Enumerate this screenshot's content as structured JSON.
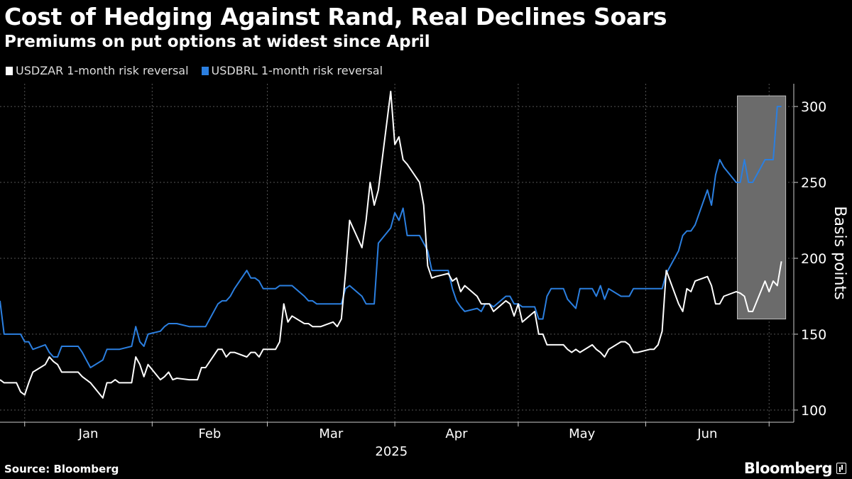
{
  "header": {
    "title": "Cost of Hedging Against Rand, Real Declines Soars",
    "subtitle": "Premiums on put options at widest since April"
  },
  "footer": {
    "source": "Source: Bloomberg",
    "logo_text": "Bloomberg"
  },
  "colors": {
    "background": "#000000",
    "zar": "#ffffff",
    "brl": "#2b7fe0",
    "highlight_box": "#6b6b6b",
    "grid": "#555555"
  },
  "chart_data": {
    "type": "line",
    "title": "Cost of Hedging Against Rand, Real Declines Soars",
    "subtitle": "Premiums on put options at widest since April",
    "xlabel": "2025",
    "ylabel": "Basis points",
    "y_axis_side": "right",
    "ylim": [
      92,
      315
    ],
    "yticks": [
      100,
      150,
      200,
      250,
      300
    ],
    "month_labels": [
      "Jan",
      "Feb",
      "Mar",
      "Apr",
      "May",
      "Jun"
    ],
    "year_label": "2025",
    "grid": true,
    "legend_position": "top-left",
    "highlight": {
      "x_start": "2025-06-25",
      "x_end": "2025-07-04",
      "y_range": [
        160,
        307
      ]
    },
    "series": [
      {
        "name": "USDZAR 1-month risk reversal",
        "color": "#ffffff",
        "points": [
          [
            "2024-12-26",
            120
          ],
          [
            "2024-12-27",
            118
          ],
          [
            "2024-12-30",
            118
          ],
          [
            "2024-12-31",
            112
          ],
          [
            "2025-01-01",
            110
          ],
          [
            "2025-01-02",
            118
          ],
          [
            "2025-01-03",
            125
          ],
          [
            "2025-01-06",
            130
          ],
          [
            "2025-01-07",
            135
          ],
          [
            "2025-01-08",
            132
          ],
          [
            "2025-01-09",
            130
          ],
          [
            "2025-01-10",
            125
          ],
          [
            "2025-01-13",
            125
          ],
          [
            "2025-01-14",
            125
          ],
          [
            "2025-01-15",
            122
          ],
          [
            "2025-01-16",
            120
          ],
          [
            "2025-01-17",
            118
          ],
          [
            "2025-01-20",
            108
          ],
          [
            "2025-01-21",
            118
          ],
          [
            "2025-01-22",
            118
          ],
          [
            "2025-01-23",
            120
          ],
          [
            "2025-01-24",
            118
          ],
          [
            "2025-01-27",
            118
          ],
          [
            "2025-01-28",
            135
          ],
          [
            "2025-01-29",
            130
          ],
          [
            "2025-01-30",
            122
          ],
          [
            "2025-01-31",
            130
          ],
          [
            "2025-02-03",
            120
          ],
          [
            "2025-02-04",
            122
          ],
          [
            "2025-02-05",
            125
          ],
          [
            "2025-02-06",
            120
          ],
          [
            "2025-02-07",
            121
          ],
          [
            "2025-02-10",
            120
          ],
          [
            "2025-02-11",
            120
          ],
          [
            "2025-02-12",
            120
          ],
          [
            "2025-02-13",
            128
          ],
          [
            "2025-02-14",
            128
          ],
          [
            "2025-02-17",
            140
          ],
          [
            "2025-02-18",
            140
          ],
          [
            "2025-02-19",
            135
          ],
          [
            "2025-02-20",
            138
          ],
          [
            "2025-02-21",
            138
          ],
          [
            "2025-02-24",
            135
          ],
          [
            "2025-02-25",
            138
          ],
          [
            "2025-02-26",
            138
          ],
          [
            "2025-02-27",
            135
          ],
          [
            "2025-02-28",
            140
          ],
          [
            "2025-03-03",
            140
          ],
          [
            "2025-03-04",
            145
          ],
          [
            "2025-03-05",
            170
          ],
          [
            "2025-03-06",
            158
          ],
          [
            "2025-03-07",
            162
          ],
          [
            "2025-03-10",
            157
          ],
          [
            "2025-03-11",
            157
          ],
          [
            "2025-03-12",
            155
          ],
          [
            "2025-03-13",
            155
          ],
          [
            "2025-03-14",
            155
          ],
          [
            "2025-03-17",
            158
          ],
          [
            "2025-03-18",
            155
          ],
          [
            "2025-03-19",
            160
          ],
          [
            "2025-03-20",
            190
          ],
          [
            "2025-03-21",
            225
          ],
          [
            "2025-03-24",
            207
          ],
          [
            "2025-03-25",
            225
          ],
          [
            "2025-03-26",
            250
          ],
          [
            "2025-03-27",
            235
          ],
          [
            "2025-03-28",
            245
          ],
          [
            "2025-03-31",
            310
          ],
          [
            "2025-04-01",
            275
          ],
          [
            "2025-04-02",
            280
          ],
          [
            "2025-04-03",
            265
          ],
          [
            "2025-04-04",
            262
          ],
          [
            "2025-04-07",
            250
          ],
          [
            "2025-04-08",
            235
          ],
          [
            "2025-04-09",
            195
          ],
          [
            "2025-04-10",
            187
          ],
          [
            "2025-04-11",
            188
          ],
          [
            "2025-04-14",
            190
          ],
          [
            "2025-04-15",
            185
          ],
          [
            "2025-04-16",
            187
          ],
          [
            "2025-04-17",
            178
          ],
          [
            "2025-04-18",
            182
          ],
          [
            "2025-04-21",
            175
          ],
          [
            "2025-04-22",
            170
          ],
          [
            "2025-04-23",
            170
          ],
          [
            "2025-04-24",
            170
          ],
          [
            "2025-04-25",
            165
          ],
          [
            "2025-04-28",
            172
          ],
          [
            "2025-04-29",
            170
          ],
          [
            "2025-04-30",
            162
          ],
          [
            "2025-05-01",
            170
          ],
          [
            "2025-05-02",
            158
          ],
          [
            "2025-05-05",
            165
          ],
          [
            "2025-05-06",
            150
          ],
          [
            "2025-05-07",
            150
          ],
          [
            "2025-05-08",
            143
          ],
          [
            "2025-05-09",
            143
          ],
          [
            "2025-05-12",
            143
          ],
          [
            "2025-05-13",
            140
          ],
          [
            "2025-05-14",
            138
          ],
          [
            "2025-05-15",
            140
          ],
          [
            "2025-05-16",
            138
          ],
          [
            "2025-05-19",
            143
          ],
          [
            "2025-05-20",
            140
          ],
          [
            "2025-05-21",
            138
          ],
          [
            "2025-05-22",
            135
          ],
          [
            "2025-05-23",
            140
          ],
          [
            "2025-05-26",
            145
          ],
          [
            "2025-05-27",
            145
          ],
          [
            "2025-05-28",
            143
          ],
          [
            "2025-05-29",
            138
          ],
          [
            "2025-05-30",
            138
          ],
          [
            "2025-06-02",
            140
          ],
          [
            "2025-06-03",
            140
          ],
          [
            "2025-06-04",
            143
          ],
          [
            "2025-06-05",
            152
          ],
          [
            "2025-06-06",
            192
          ],
          [
            "2025-06-09",
            170
          ],
          [
            "2025-06-10",
            165
          ],
          [
            "2025-06-11",
            180
          ],
          [
            "2025-06-12",
            178
          ],
          [
            "2025-06-13",
            185
          ],
          [
            "2025-06-16",
            188
          ],
          [
            "2025-06-17",
            182
          ],
          [
            "2025-06-18",
            170
          ],
          [
            "2025-06-19",
            170
          ],
          [
            "2025-06-20",
            175
          ],
          [
            "2025-06-23",
            178
          ],
          [
            "2025-06-24",
            177
          ],
          [
            "2025-06-25",
            175
          ],
          [
            "2025-06-26",
            165
          ],
          [
            "2025-06-27",
            165
          ],
          [
            "2025-06-30",
            185
          ],
          [
            "2025-07-01",
            178
          ],
          [
            "2025-07-02",
            185
          ],
          [
            "2025-07-03",
            182
          ],
          [
            "2025-07-04",
            198
          ]
        ]
      },
      {
        "name": "USDBRL 1-month risk reversal",
        "color": "#2b7fe0",
        "points": [
          [
            "2024-12-26",
            172
          ],
          [
            "2024-12-27",
            150
          ],
          [
            "2024-12-30",
            150
          ],
          [
            "2024-12-31",
            150
          ],
          [
            "2025-01-01",
            145
          ],
          [
            "2025-01-02",
            145
          ],
          [
            "2025-01-03",
            140
          ],
          [
            "2025-01-06",
            143
          ],
          [
            "2025-01-07",
            138
          ],
          [
            "2025-01-08",
            135
          ],
          [
            "2025-01-09",
            135
          ],
          [
            "2025-01-10",
            142
          ],
          [
            "2025-01-13",
            142
          ],
          [
            "2025-01-14",
            142
          ],
          [
            "2025-01-15",
            138
          ],
          [
            "2025-01-16",
            133
          ],
          [
            "2025-01-17",
            128
          ],
          [
            "2025-01-20",
            133
          ],
          [
            "2025-01-21",
            140
          ],
          [
            "2025-01-22",
            140
          ],
          [
            "2025-01-23",
            140
          ],
          [
            "2025-01-24",
            140
          ],
          [
            "2025-01-27",
            142
          ],
          [
            "2025-01-28",
            155
          ],
          [
            "2025-01-29",
            145
          ],
          [
            "2025-01-30",
            142
          ],
          [
            "2025-01-31",
            150
          ],
          [
            "2025-02-03",
            152
          ],
          [
            "2025-02-04",
            155
          ],
          [
            "2025-02-05",
            157
          ],
          [
            "2025-02-06",
            157
          ],
          [
            "2025-02-07",
            157
          ],
          [
            "2025-02-10",
            155
          ],
          [
            "2025-02-11",
            155
          ],
          [
            "2025-02-12",
            155
          ],
          [
            "2025-02-13",
            155
          ],
          [
            "2025-02-14",
            155
          ],
          [
            "2025-02-17",
            170
          ],
          [
            "2025-02-18",
            172
          ],
          [
            "2025-02-19",
            172
          ],
          [
            "2025-02-20",
            175
          ],
          [
            "2025-02-21",
            180
          ],
          [
            "2025-02-24",
            192
          ],
          [
            "2025-02-25",
            187
          ],
          [
            "2025-02-26",
            187
          ],
          [
            "2025-02-27",
            185
          ],
          [
            "2025-02-28",
            180
          ],
          [
            "2025-03-03",
            180
          ],
          [
            "2025-03-04",
            182
          ],
          [
            "2025-03-05",
            182
          ],
          [
            "2025-03-06",
            182
          ],
          [
            "2025-03-07",
            182
          ],
          [
            "2025-03-10",
            175
          ],
          [
            "2025-03-11",
            172
          ],
          [
            "2025-03-12",
            172
          ],
          [
            "2025-03-13",
            170
          ],
          [
            "2025-03-14",
            170
          ],
          [
            "2025-03-17",
            170
          ],
          [
            "2025-03-18",
            170
          ],
          [
            "2025-03-19",
            170
          ],
          [
            "2025-03-20",
            180
          ],
          [
            "2025-03-21",
            182
          ],
          [
            "2025-03-24",
            175
          ],
          [
            "2025-03-25",
            170
          ],
          [
            "2025-03-26",
            170
          ],
          [
            "2025-03-27",
            170
          ],
          [
            "2025-03-28",
            210
          ],
          [
            "2025-03-31",
            220
          ],
          [
            "2025-04-01",
            230
          ],
          [
            "2025-04-02",
            225
          ],
          [
            "2025-04-03",
            233
          ],
          [
            "2025-04-04",
            215
          ],
          [
            "2025-04-07",
            215
          ],
          [
            "2025-04-08",
            210
          ],
          [
            "2025-04-09",
            205
          ],
          [
            "2025-04-10",
            192
          ],
          [
            "2025-04-11",
            192
          ],
          [
            "2025-04-14",
            192
          ],
          [
            "2025-04-15",
            180
          ],
          [
            "2025-04-16",
            172
          ],
          [
            "2025-04-17",
            168
          ],
          [
            "2025-04-18",
            165
          ],
          [
            "2025-04-21",
            167
          ],
          [
            "2025-04-22",
            165
          ],
          [
            "2025-04-23",
            170
          ],
          [
            "2025-04-24",
            170
          ],
          [
            "2025-04-25",
            168
          ],
          [
            "2025-04-28",
            175
          ],
          [
            "2025-04-29",
            175
          ],
          [
            "2025-04-30",
            170
          ],
          [
            "2025-05-01",
            170
          ],
          [
            "2025-05-02",
            168
          ],
          [
            "2025-05-05",
            168
          ],
          [
            "2025-05-06",
            160
          ],
          [
            "2025-05-07",
            160
          ],
          [
            "2025-05-08",
            175
          ],
          [
            "2025-05-09",
            180
          ],
          [
            "2025-05-12",
            180
          ],
          [
            "2025-05-13",
            173
          ],
          [
            "2025-05-14",
            170
          ],
          [
            "2025-05-15",
            167
          ],
          [
            "2025-05-16",
            180
          ],
          [
            "2025-05-19",
            180
          ],
          [
            "2025-05-20",
            175
          ],
          [
            "2025-05-21",
            182
          ],
          [
            "2025-05-22",
            173
          ],
          [
            "2025-05-23",
            180
          ],
          [
            "2025-05-26",
            175
          ],
          [
            "2025-05-27",
            175
          ],
          [
            "2025-05-28",
            175
          ],
          [
            "2025-05-29",
            180
          ],
          [
            "2025-05-30",
            180
          ],
          [
            "2025-06-02",
            180
          ],
          [
            "2025-06-03",
            180
          ],
          [
            "2025-06-04",
            180
          ],
          [
            "2025-06-05",
            180
          ],
          [
            "2025-06-06",
            190
          ],
          [
            "2025-06-09",
            205
          ],
          [
            "2025-06-10",
            215
          ],
          [
            "2025-06-11",
            218
          ],
          [
            "2025-06-12",
            218
          ],
          [
            "2025-06-13",
            222
          ],
          [
            "2025-06-16",
            245
          ],
          [
            "2025-06-17",
            235
          ],
          [
            "2025-06-18",
            255
          ],
          [
            "2025-06-19",
            265
          ],
          [
            "2025-06-20",
            260
          ],
          [
            "2025-06-23",
            250
          ],
          [
            "2025-06-24",
            250
          ],
          [
            "2025-06-25",
            265
          ],
          [
            "2025-06-26",
            250
          ],
          [
            "2025-06-27",
            250
          ],
          [
            "2025-06-30",
            265
          ],
          [
            "2025-07-01",
            265
          ],
          [
            "2025-07-02",
            265
          ],
          [
            "2025-07-03",
            300
          ],
          [
            "2025-07-04",
            300
          ]
        ]
      }
    ]
  }
}
